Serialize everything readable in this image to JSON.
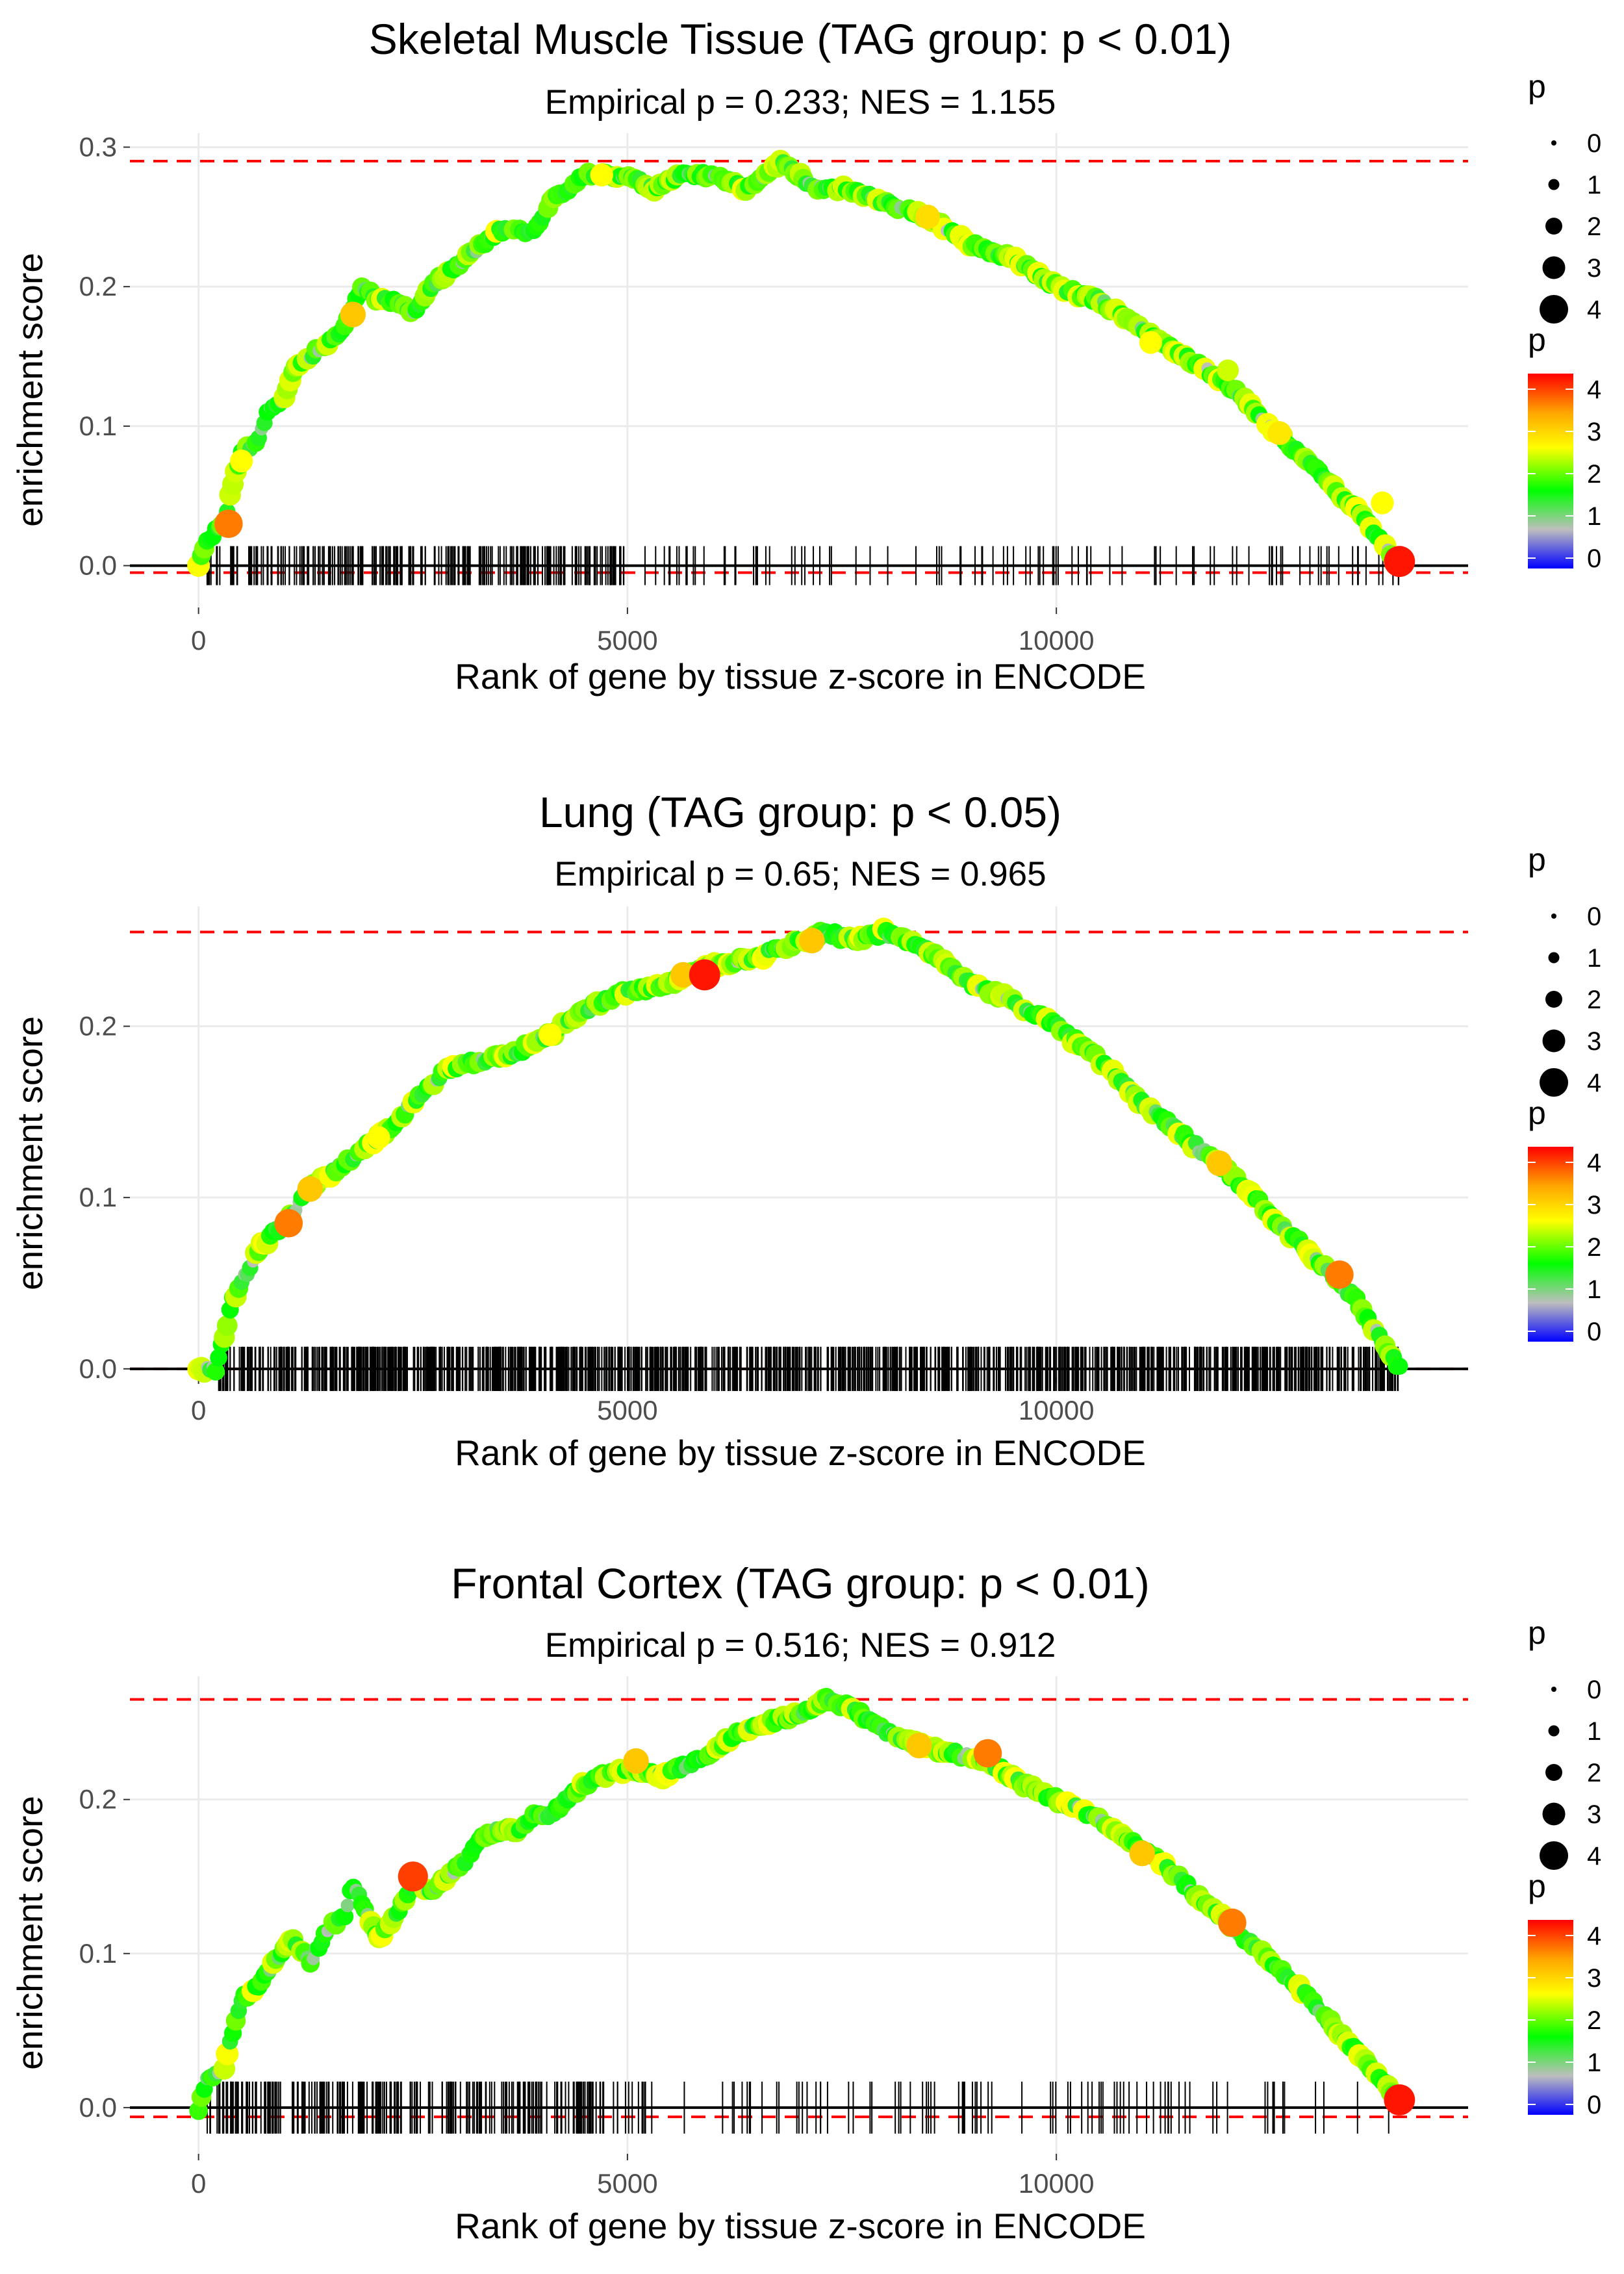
{
  "figure": {
    "xlabel": "Rank of gene by tissue z-score in ENCODE",
    "ylabel": "enrichment score"
  },
  "legend": {
    "size_title": "p",
    "size_labels": [
      "0",
      "1",
      "2",
      "3",
      "4"
    ],
    "color_title": "p",
    "color_labels": [
      "4",
      "3",
      "2",
      "1",
      "0"
    ]
  },
  "colors": {
    "max_line": "#ff0000",
    "curve_line": "#bebebe",
    "gradient": [
      "#0000ff",
      "#bebebe",
      "#00ff00",
      "#ffff00",
      "#ffa500",
      "#ff0000"
    ]
  },
  "chart_data": [
    {
      "type": "scatter",
      "title": "Skeletal Muscle Tissue (TAG group: p < 0.01)",
      "subtitle": "Empirical p = 0.233; NES = 1.155",
      "xlabel": "Rank of gene by tissue z-score in ENCODE",
      "ylabel": "enrichment score",
      "xlim": [
        -800,
        14800
      ],
      "ylim": [
        -0.03,
        0.31
      ],
      "xticks": [
        0,
        5000,
        10000
      ],
      "xtick_labels": [
        "0",
        "5000",
        "10000"
      ],
      "yticks": [
        0.0,
        0.1,
        0.2,
        0.3
      ],
      "ytick_labels": [
        "0.0",
        "0.1",
        "0.2",
        "0.3"
      ],
      "max_es": 0.29,
      "min_es": -0.005,
      "gene_count": 340,
      "curve": [
        [
          0,
          0.0
        ],
        [
          120,
          0.02
        ],
        [
          300,
          0.03
        ],
        [
          400,
          0.06
        ],
        [
          500,
          0.08
        ],
        [
          700,
          0.09
        ],
        [
          800,
          0.11
        ],
        [
          1000,
          0.12
        ],
        [
          1100,
          0.14
        ],
        [
          1300,
          0.15
        ],
        [
          1500,
          0.16
        ],
        [
          1700,
          0.17
        ],
        [
          1900,
          0.2
        ],
        [
          2100,
          0.19
        ],
        [
          2300,
          0.19
        ],
        [
          2500,
          0.18
        ],
        [
          2700,
          0.2
        ],
        [
          2900,
          0.21
        ],
        [
          3100,
          0.22
        ],
        [
          3300,
          0.23
        ],
        [
          3500,
          0.24
        ],
        [
          3700,
          0.24
        ],
        [
          3900,
          0.24
        ],
        [
          4100,
          0.26
        ],
        [
          4300,
          0.27
        ],
        [
          4500,
          0.28
        ],
        [
          4700,
          0.28
        ],
        [
          5000,
          0.28
        ],
        [
          5300,
          0.27
        ],
        [
          5600,
          0.28
        ],
        [
          6000,
          0.28
        ],
        [
          6400,
          0.27
        ],
        [
          6800,
          0.29
        ],
        [
          7200,
          0.27
        ],
        [
          7600,
          0.27
        ],
        [
          8000,
          0.26
        ],
        [
          8500,
          0.25
        ],
        [
          9000,
          0.23
        ],
        [
          9500,
          0.22
        ],
        [
          10000,
          0.2
        ],
        [
          10500,
          0.19
        ],
        [
          11000,
          0.17
        ],
        [
          11500,
          0.15
        ],
        [
          12000,
          0.13
        ],
        [
          12500,
          0.1
        ],
        [
          13000,
          0.07
        ],
        [
          13500,
          0.04
        ],
        [
          14000,
          0.0
        ]
      ],
      "highlights": [
        [
          350,
          0.03,
          4
        ],
        [
          500,
          0.075,
          3
        ],
        [
          1800,
          0.18,
          3.5
        ],
        [
          4700,
          0.28,
          3
        ],
        [
          8500,
          0.25,
          3.3
        ],
        [
          11100,
          0.16,
          3
        ],
        [
          12000,
          0.14,
          2.8
        ],
        [
          12600,
          0.095,
          3.2
        ],
        [
          13800,
          0.045,
          3
        ],
        [
          14000,
          0.003,
          4.5
        ]
      ]
    },
    {
      "type": "scatter",
      "title": "Lung (TAG group: p < 0.05)",
      "subtitle": "Empirical p = 0.65; NES = 0.965",
      "xlabel": "Rank of gene by tissue z-score in ENCODE",
      "ylabel": "enrichment score",
      "xlim": [
        -800,
        14800
      ],
      "ylim": [
        -0.005,
        0.27
      ],
      "xticks": [
        0,
        5000,
        10000
      ],
      "xtick_labels": [
        "0",
        "5000",
        "10000"
      ],
      "yticks": [
        0.0,
        0.1,
        0.2
      ],
      "ytick_labels": [
        "0.0",
        "0.1",
        "0.2"
      ],
      "max_es": 0.255,
      "min_es": 0.0,
      "gene_count": 1200,
      "curve": [
        [
          0,
          0.0
        ],
        [
          200,
          0.0
        ],
        [
          400,
          0.04
        ],
        [
          700,
          0.07
        ],
        [
          1000,
          0.085
        ],
        [
          1300,
          0.105
        ],
        [
          1700,
          0.12
        ],
        [
          2100,
          0.135
        ],
        [
          2500,
          0.155
        ],
        [
          2900,
          0.175
        ],
        [
          3300,
          0.18
        ],
        [
          3700,
          0.185
        ],
        [
          4100,
          0.195
        ],
        [
          4500,
          0.21
        ],
        [
          5000,
          0.22
        ],
        [
          5500,
          0.225
        ],
        [
          6000,
          0.235
        ],
        [
          6500,
          0.24
        ],
        [
          7000,
          0.25
        ],
        [
          7300,
          0.255
        ],
        [
          7600,
          0.25
        ],
        [
          8000,
          0.255
        ],
        [
          8500,
          0.245
        ],
        [
          9000,
          0.225
        ],
        [
          9500,
          0.215
        ],
        [
          10000,
          0.2
        ],
        [
          10500,
          0.18
        ],
        [
          11000,
          0.155
        ],
        [
          11500,
          0.135
        ],
        [
          12000,
          0.115
        ],
        [
          12500,
          0.09
        ],
        [
          13000,
          0.065
        ],
        [
          13500,
          0.04
        ],
        [
          14000,
          0.0
        ]
      ],
      "highlights": [
        [
          1050,
          0.085,
          4
        ],
        [
          1300,
          0.105,
          3.5
        ],
        [
          2100,
          0.135,
          3
        ],
        [
          4100,
          0.195,
          3
        ],
        [
          5650,
          0.23,
          3.5
        ],
        [
          5900,
          0.23,
          4.5
        ],
        [
          7150,
          0.25,
          3.5
        ],
        [
          11900,
          0.12,
          3.5
        ],
        [
          13300,
          0.055,
          4
        ]
      ]
    },
    {
      "type": "scatter",
      "title": "Frontal Cortex (TAG group: p < 0.01)",
      "subtitle": "Empirical p = 0.516; NES = 0.912",
      "xlabel": "Rank of gene by tissue z-score in ENCODE",
      "ylabel": "enrichment score",
      "xlim": [
        -800,
        14800
      ],
      "ylim": [
        -0.03,
        0.28
      ],
      "xticks": [
        0,
        5000,
        10000
      ],
      "xtick_labels": [
        "0",
        "5000",
        "10000"
      ],
      "yticks": [
        0.0,
        0.1,
        0.2
      ],
      "ytick_labels": [
        "0.0",
        "0.1",
        "0.2"
      ],
      "max_es": 0.265,
      "min_es": -0.006,
      "gene_count": 320,
      "curve": [
        [
          0,
          0.0
        ],
        [
          100,
          0.02
        ],
        [
          300,
          0.025
        ],
        [
          400,
          0.05
        ],
        [
          500,
          0.07
        ],
        [
          700,
          0.08
        ],
        [
          900,
          0.095
        ],
        [
          1100,
          0.11
        ],
        [
          1300,
          0.095
        ],
        [
          1500,
          0.115
        ],
        [
          1700,
          0.125
        ],
        [
          1800,
          0.145
        ],
        [
          2100,
          0.11
        ],
        [
          2300,
          0.125
        ],
        [
          2500,
          0.145
        ],
        [
          2700,
          0.14
        ],
        [
          2900,
          0.15
        ],
        [
          3100,
          0.16
        ],
        [
          3300,
          0.175
        ],
        [
          3500,
          0.18
        ],
        [
          3700,
          0.18
        ],
        [
          3900,
          0.19
        ],
        [
          4100,
          0.19
        ],
        [
          4300,
          0.2
        ],
        [
          4500,
          0.21
        ],
        [
          4700,
          0.215
        ],
        [
          5000,
          0.22
        ],
        [
          5400,
          0.215
        ],
        [
          5800,
          0.225
        ],
        [
          6200,
          0.24
        ],
        [
          6600,
          0.25
        ],
        [
          7000,
          0.255
        ],
        [
          7300,
          0.265
        ],
        [
          7600,
          0.26
        ],
        [
          8000,
          0.245
        ],
        [
          8400,
          0.235
        ],
        [
          8800,
          0.23
        ],
        [
          9200,
          0.225
        ],
        [
          9600,
          0.21
        ],
        [
          10000,
          0.2
        ],
        [
          10400,
          0.19
        ],
        [
          10800,
          0.175
        ],
        [
          11200,
          0.16
        ],
        [
          11600,
          0.14
        ],
        [
          12000,
          0.12
        ],
        [
          12400,
          0.1
        ],
        [
          12800,
          0.08
        ],
        [
          13200,
          0.055
        ],
        [
          13600,
          0.03
        ],
        [
          14000,
          0.005
        ]
      ],
      "highlights": [
        [
          2500,
          0.15,
          4.3
        ],
        [
          5100,
          0.225,
          3.5
        ],
        [
          8400,
          0.235,
          3.5
        ],
        [
          9200,
          0.23,
          4
        ],
        [
          11000,
          0.165,
          3.5
        ],
        [
          12050,
          0.12,
          4
        ],
        [
          14000,
          0.005,
          4.5
        ]
      ]
    }
  ]
}
